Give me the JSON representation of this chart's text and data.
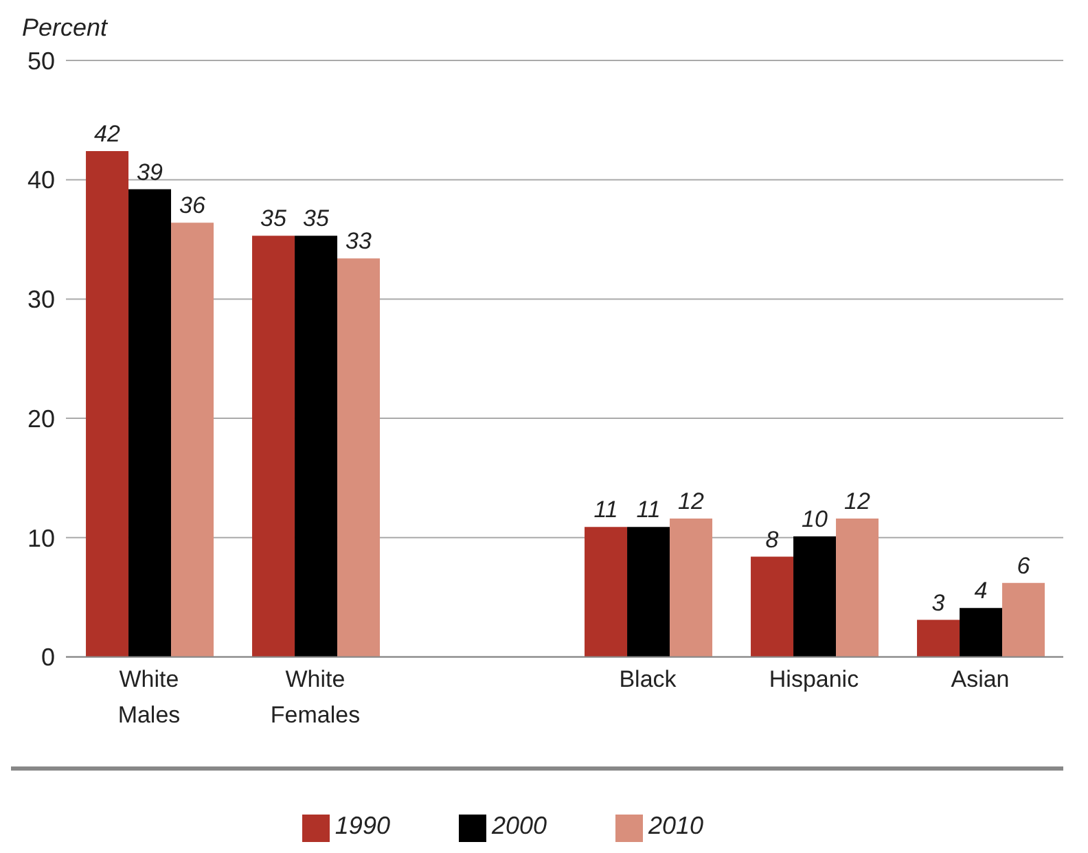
{
  "chart_data": {
    "type": "bar",
    "ylabel": "Percent",
    "categories": [
      "White Males",
      "White Females",
      null,
      "Black",
      "Hispanic",
      "Asian"
    ],
    "series": [
      {
        "name": "1990",
        "color": "#b03228",
        "values": [
          42.4,
          35.3,
          null,
          10.9,
          8.4,
          3.1
        ],
        "value_labels": [
          "42",
          "35",
          null,
          "11",
          "8",
          "3"
        ]
      },
      {
        "name": "2000",
        "color": "#000000",
        "values": [
          39.2,
          35.3,
          null,
          10.9,
          10.1,
          4.1
        ],
        "value_labels": [
          "39",
          "35",
          null,
          "11",
          "10",
          "4"
        ]
      },
      {
        "name": "2010",
        "color": "#d98f7c",
        "values": [
          36.4,
          33.4,
          null,
          11.6,
          11.6,
          6.2
        ],
        "value_labels": [
          "36",
          "33",
          null,
          "12",
          "12",
          "6"
        ]
      }
    ],
    "ylim": [
      0,
      50
    ],
    "yticks": [
      0,
      10,
      20,
      30,
      40,
      50
    ],
    "grid": "y",
    "legend": "bottom"
  }
}
